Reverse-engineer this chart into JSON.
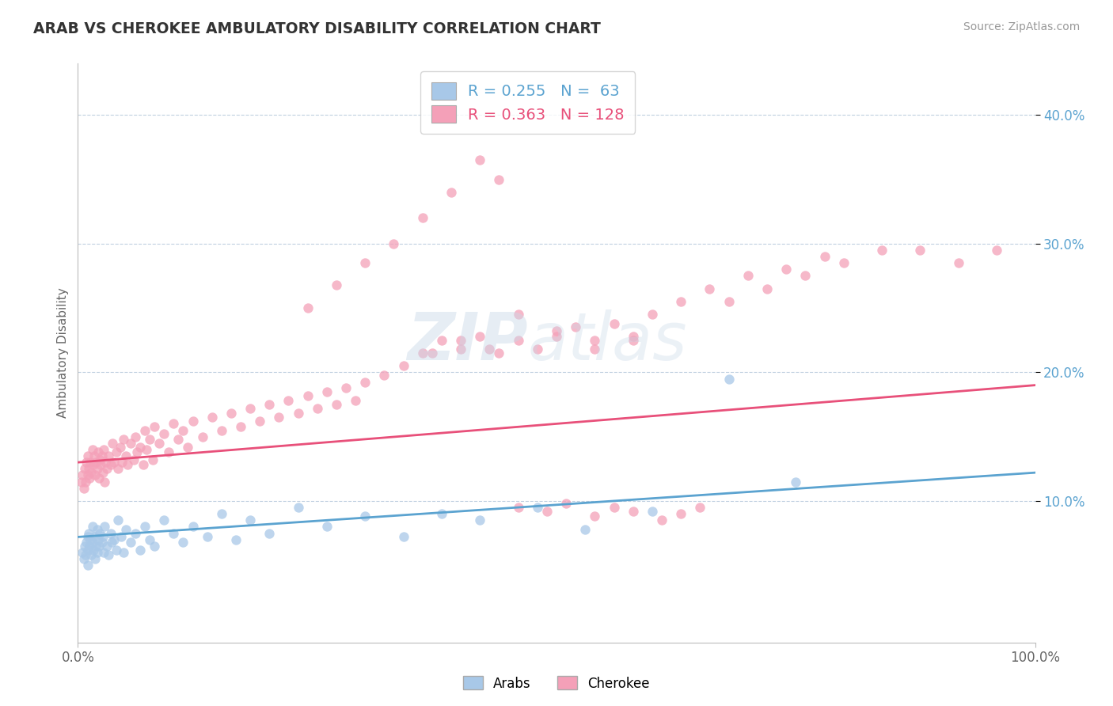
{
  "title": "ARAB VS CHEROKEE AMBULATORY DISABILITY CORRELATION CHART",
  "source": "Source: ZipAtlas.com",
  "ylabel": "Ambulatory Disability",
  "xlim": [
    0.0,
    1.0
  ],
  "ylim": [
    -0.01,
    0.44
  ],
  "x_tick_labels": [
    "0.0%",
    "100.0%"
  ],
  "y_tick_labels": [
    "10.0%",
    "20.0%",
    "30.0%",
    "40.0%"
  ],
  "y_tick_values": [
    0.1,
    0.2,
    0.3,
    0.4
  ],
  "arab_R": 0.255,
  "arab_N": 63,
  "cherokee_R": 0.363,
  "cherokee_N": 128,
  "arab_color": "#a8c8e8",
  "cherokee_color": "#f4a0b8",
  "arab_line_color": "#5ba3d0",
  "cherokee_line_color": "#e8507a",
  "legend_label_arab": "Arabs",
  "legend_label_cherokee": "Cherokee",
  "background_color": "#ffffff",
  "grid_color": "#c0d0e0",
  "title_color": "#333333",
  "arab_line_start_y": 0.072,
  "arab_line_end_y": 0.122,
  "cherokee_line_start_y": 0.13,
  "cherokee_line_end_y": 0.19,
  "arab_scatter_x": [
    0.005,
    0.006,
    0.007,
    0.008,
    0.009,
    0.01,
    0.01,
    0.01,
    0.011,
    0.012,
    0.013,
    0.014,
    0.015,
    0.015,
    0.016,
    0.017,
    0.018,
    0.019,
    0.02,
    0.02,
    0.021,
    0.022,
    0.023,
    0.025,
    0.026,
    0.027,
    0.028,
    0.03,
    0.032,
    0.034,
    0.035,
    0.038,
    0.04,
    0.042,
    0.045,
    0.048,
    0.05,
    0.055,
    0.06,
    0.065,
    0.07,
    0.075,
    0.08,
    0.09,
    0.1,
    0.11,
    0.12,
    0.135,
    0.15,
    0.165,
    0.18,
    0.2,
    0.23,
    0.26,
    0.3,
    0.34,
    0.38,
    0.42,
    0.48,
    0.53,
    0.6,
    0.68,
    0.75
  ],
  "arab_scatter_y": [
    0.06,
    0.055,
    0.065,
    0.058,
    0.068,
    0.062,
    0.072,
    0.05,
    0.075,
    0.065,
    0.07,
    0.058,
    0.068,
    0.08,
    0.062,
    0.072,
    0.055,
    0.065,
    0.06,
    0.078,
    0.07,
    0.065,
    0.075,
    0.068,
    0.072,
    0.06,
    0.08,
    0.065,
    0.058,
    0.075,
    0.068,
    0.07,
    0.062,
    0.085,
    0.072,
    0.06,
    0.078,
    0.068,
    0.075,
    0.062,
    0.08,
    0.07,
    0.065,
    0.085,
    0.075,
    0.068,
    0.08,
    0.072,
    0.09,
    0.07,
    0.085,
    0.075,
    0.095,
    0.08,
    0.088,
    0.072,
    0.09,
    0.085,
    0.095,
    0.078,
    0.092,
    0.195,
    0.115
  ],
  "cherokee_scatter_x": [
    0.004,
    0.005,
    0.006,
    0.007,
    0.008,
    0.009,
    0.01,
    0.01,
    0.011,
    0.012,
    0.013,
    0.014,
    0.015,
    0.016,
    0.017,
    0.018,
    0.019,
    0.02,
    0.021,
    0.022,
    0.023,
    0.024,
    0.025,
    0.026,
    0.027,
    0.028,
    0.029,
    0.03,
    0.032,
    0.034,
    0.036,
    0.038,
    0.04,
    0.042,
    0.044,
    0.046,
    0.048,
    0.05,
    0.052,
    0.055,
    0.058,
    0.06,
    0.062,
    0.065,
    0.068,
    0.07,
    0.072,
    0.075,
    0.078,
    0.08,
    0.085,
    0.09,
    0.095,
    0.1,
    0.105,
    0.11,
    0.115,
    0.12,
    0.13,
    0.14,
    0.15,
    0.16,
    0.17,
    0.18,
    0.19,
    0.2,
    0.21,
    0.22,
    0.23,
    0.24,
    0.25,
    0.26,
    0.27,
    0.28,
    0.29,
    0.3,
    0.32,
    0.34,
    0.36,
    0.38,
    0.4,
    0.42,
    0.44,
    0.46,
    0.48,
    0.5,
    0.52,
    0.54,
    0.56,
    0.58,
    0.6,
    0.63,
    0.66,
    0.7,
    0.74,
    0.78,
    0.58,
    0.54,
    0.5,
    0.46,
    0.43,
    0.4,
    0.37,
    0.68,
    0.72,
    0.76,
    0.8,
    0.84,
    0.88,
    0.92,
    0.96,
    0.46,
    0.49,
    0.51,
    0.54,
    0.56,
    0.58,
    0.61,
    0.63,
    0.65,
    0.44,
    0.42,
    0.39,
    0.36,
    0.33,
    0.3,
    0.27,
    0.24
  ],
  "cherokee_scatter_y": [
    0.115,
    0.12,
    0.11,
    0.125,
    0.115,
    0.13,
    0.12,
    0.135,
    0.125,
    0.118,
    0.13,
    0.122,
    0.14,
    0.128,
    0.135,
    0.12,
    0.13,
    0.125,
    0.138,
    0.118,
    0.132,
    0.128,
    0.135,
    0.122,
    0.14,
    0.115,
    0.13,
    0.125,
    0.135,
    0.128,
    0.145,
    0.13,
    0.138,
    0.125,
    0.142,
    0.13,
    0.148,
    0.135,
    0.128,
    0.145,
    0.132,
    0.15,
    0.138,
    0.142,
    0.128,
    0.155,
    0.14,
    0.148,
    0.132,
    0.158,
    0.145,
    0.152,
    0.138,
    0.16,
    0.148,
    0.155,
    0.142,
    0.162,
    0.15,
    0.165,
    0.155,
    0.168,
    0.158,
    0.172,
    0.162,
    0.175,
    0.165,
    0.178,
    0.168,
    0.182,
    0.172,
    0.185,
    0.175,
    0.188,
    0.178,
    0.192,
    0.198,
    0.205,
    0.215,
    0.225,
    0.218,
    0.228,
    0.215,
    0.225,
    0.218,
    0.228,
    0.235,
    0.225,
    0.238,
    0.228,
    0.245,
    0.255,
    0.265,
    0.275,
    0.28,
    0.29,
    0.225,
    0.218,
    0.232,
    0.245,
    0.218,
    0.225,
    0.215,
    0.255,
    0.265,
    0.275,
    0.285,
    0.295,
    0.295,
    0.285,
    0.295,
    0.095,
    0.092,
    0.098,
    0.088,
    0.095,
    0.092,
    0.085,
    0.09,
    0.095,
    0.35,
    0.365,
    0.34,
    0.32,
    0.3,
    0.285,
    0.268,
    0.25
  ]
}
